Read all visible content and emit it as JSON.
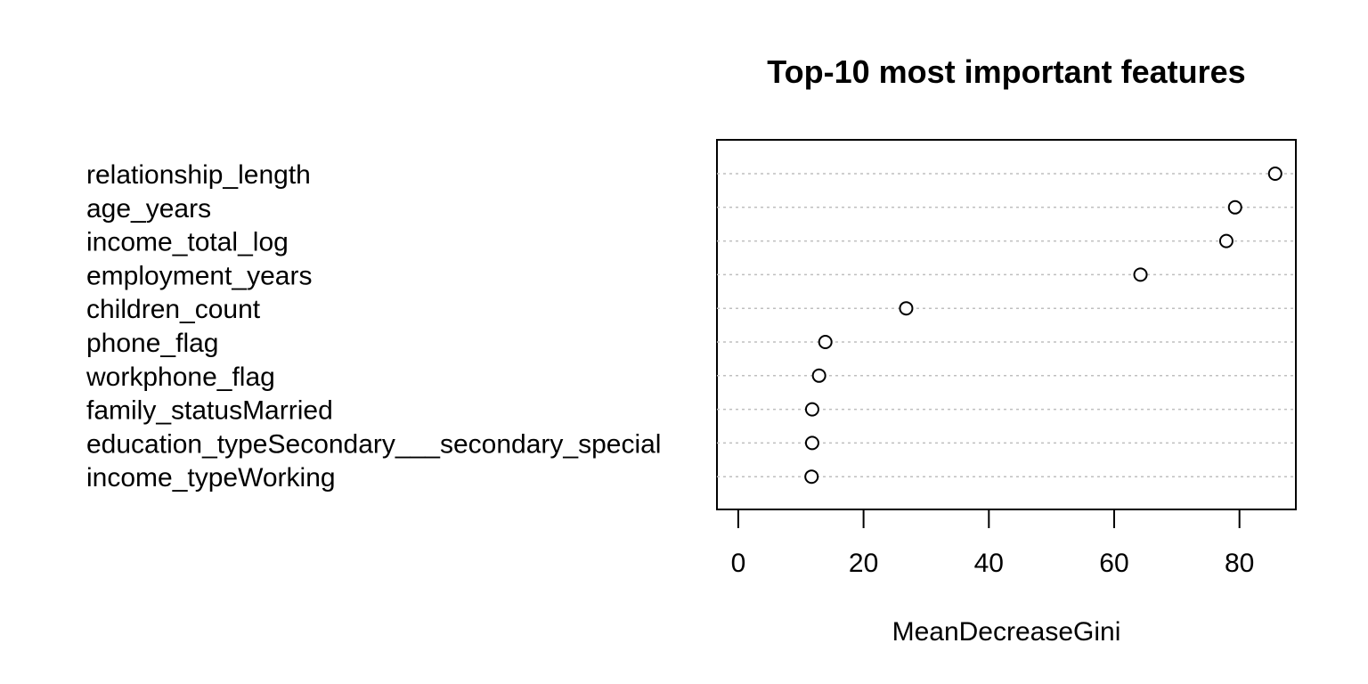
{
  "chart_data": {
    "type": "scatter",
    "title": "Top-10 most important features",
    "xlabel": "MeanDecreaseGini",
    "ylabel": "",
    "xlim": [
      -3.4,
      89.0
    ],
    "xticks": [
      0,
      20,
      40,
      60,
      80
    ],
    "xtick_labels": [
      "0",
      "20",
      "40",
      "60",
      "80"
    ],
    "grid": "horizontal dotted",
    "legend": "none",
    "series": [
      {
        "categories": [
          "relationship_length",
          "age_years",
          "income_total_log",
          "employment_years",
          "children_count",
          "phone_flag",
          "workphone_flag",
          "family_statusMarried",
          "education_typeSecondary___secondary_special",
          "income_typeWorking"
        ],
        "values": [
          85.7,
          79.3,
          77.9,
          64.2,
          26.8,
          13.9,
          12.9,
          11.8,
          11.8,
          11.7
        ]
      }
    ],
    "colors": {
      "point_stroke": "#000000",
      "point_fill": "#ffffff",
      "grid": "#bfbfbf",
      "frame": "#000000"
    }
  }
}
